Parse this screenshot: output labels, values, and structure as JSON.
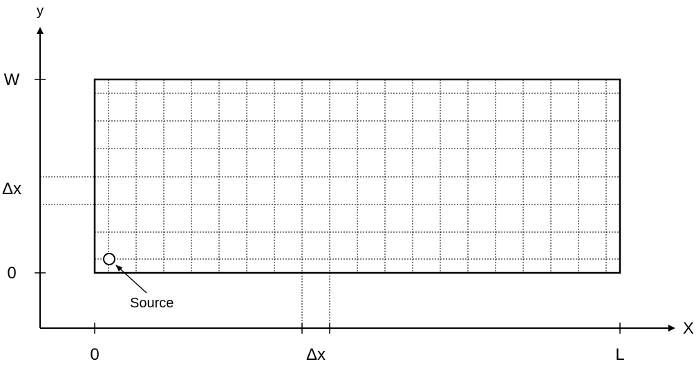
{
  "axes": {
    "x_axis_label": "X",
    "y_axis_label": "y"
  },
  "x_ticks": {
    "zero": "0",
    "dx": "Δx",
    "length": "L"
  },
  "y_ticks": {
    "zero": "0",
    "dx": "Δx",
    "width": "W"
  },
  "source": {
    "label": "Source"
  }
}
